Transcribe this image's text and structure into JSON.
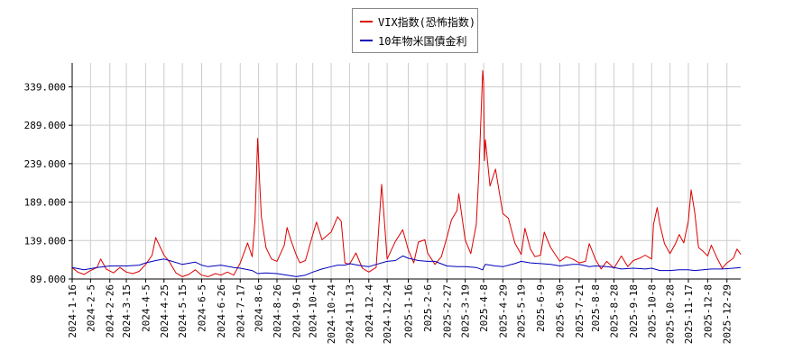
{
  "chart_data": {
    "type": "line",
    "title": "",
    "xlabel": "",
    "ylabel": "",
    "ylim": [
      89.0,
      370.0
    ],
    "y_ticks": [
      "89.000",
      "139.000",
      "189.000",
      "239.000",
      "289.000",
      "339.000"
    ],
    "y_tick_values": [
      89,
      139,
      189,
      239,
      289,
      339
    ],
    "x_ticks": [
      "2024-1-16",
      "2024-2-5",
      "2024-2-26",
      "2024-3-15",
      "2024-4-5",
      "2024-4-25",
      "2024-5-15",
      "2024-6-5",
      "2024-6-26",
      "2024-7-17",
      "2024-8-6",
      "2024-8-26",
      "2024-9-16",
      "2024-10-4",
      "2024-10-24",
      "2024-11-13",
      "2024-12-4",
      "2024-12-24",
      "2025-1-16",
      "2025-2-6",
      "2025-2-27",
      "2025-3-19",
      "2025-4-8",
      "2025-4-29",
      "2025-5-19",
      "2025-6-9",
      "2025-6-30",
      "2025-7-21",
      "2025-8-8",
      "2025-8-28",
      "2025-9-18",
      "2025-10-8",
      "2025-10-28",
      "2025-11-17",
      "2025-12-8",
      "2025-12-29"
    ],
    "x_range": [
      "2024-01-16",
      "2026-01-13"
    ],
    "grid": true,
    "legend_placement": "top-center",
    "series": [
      {
        "name": "VIX指数(恐怖指数)",
        "color": "#dd0000",
        "points": [
          [
            "2024-01-16",
            104
          ],
          [
            "2024-01-22",
            98
          ],
          [
            "2024-01-29",
            95
          ],
          [
            "2024-02-05",
            100
          ],
          [
            "2024-02-12",
            104
          ],
          [
            "2024-02-16",
            115
          ],
          [
            "2024-02-22",
            102
          ],
          [
            "2024-03-01",
            97
          ],
          [
            "2024-03-08",
            104
          ],
          [
            "2024-03-15",
            98
          ],
          [
            "2024-03-22",
            96
          ],
          [
            "2024-03-29",
            99
          ],
          [
            "2024-04-05",
            108
          ],
          [
            "2024-04-12",
            120
          ],
          [
            "2024-04-16",
            143
          ],
          [
            "2024-04-19",
            135
          ],
          [
            "2024-04-25",
            120
          ],
          [
            "2024-05-01",
            111
          ],
          [
            "2024-05-08",
            97
          ],
          [
            "2024-05-15",
            92
          ],
          [
            "2024-05-22",
            95
          ],
          [
            "2024-05-29",
            101
          ],
          [
            "2024-06-05",
            94
          ],
          [
            "2024-06-12",
            92
          ],
          [
            "2024-06-20",
            96
          ],
          [
            "2024-06-26",
            94
          ],
          [
            "2024-07-03",
            98
          ],
          [
            "2024-07-10",
            94
          ],
          [
            "2024-07-17",
            110
          ],
          [
            "2024-07-22",
            126
          ],
          [
            "2024-07-25",
            136
          ],
          [
            "2024-07-30",
            118
          ],
          [
            "2024-08-02",
            165
          ],
          [
            "2024-08-05",
            272
          ],
          [
            "2024-08-07",
            220
          ],
          [
            "2024-08-09",
            170
          ],
          [
            "2024-08-14",
            130
          ],
          [
            "2024-08-20",
            115
          ],
          [
            "2024-08-26",
            112
          ],
          [
            "2024-09-03",
            133
          ],
          [
            "2024-09-06",
            156
          ],
          [
            "2024-09-10",
            140
          ],
          [
            "2024-09-16",
            120
          ],
          [
            "2024-09-20",
            110
          ],
          [
            "2024-09-26",
            113
          ],
          [
            "2024-10-04",
            147
          ],
          [
            "2024-10-08",
            163
          ],
          [
            "2024-10-14",
            140
          ],
          [
            "2024-10-24",
            150
          ],
          [
            "2024-10-31",
            170
          ],
          [
            "2024-11-04",
            164
          ],
          [
            "2024-11-08",
            110
          ],
          [
            "2024-11-13",
            108
          ],
          [
            "2024-11-20",
            123
          ],
          [
            "2024-11-27",
            103
          ],
          [
            "2024-12-04",
            98
          ],
          [
            "2024-12-12",
            104
          ],
          [
            "2024-12-18",
            212
          ],
          [
            "2024-12-20",
            180
          ],
          [
            "2024-12-24",
            115
          ],
          [
            "2025-01-02",
            138
          ],
          [
            "2025-01-10",
            153
          ],
          [
            "2025-01-16",
            127
          ],
          [
            "2025-01-22",
            110
          ],
          [
            "2025-01-27",
            137
          ],
          [
            "2025-02-03",
            140
          ],
          [
            "2025-02-06",
            123
          ],
          [
            "2025-02-14",
            108
          ],
          [
            "2025-02-21",
            118
          ],
          [
            "2025-02-27",
            143
          ],
          [
            "2025-03-04",
            166
          ],
          [
            "2025-03-10",
            178
          ],
          [
            "2025-03-12",
            200
          ],
          [
            "2025-03-19",
            140
          ],
          [
            "2025-03-25",
            122
          ],
          [
            "2025-03-31",
            160
          ],
          [
            "2025-04-03",
            230
          ],
          [
            "2025-04-07",
            360
          ],
          [
            "2025-04-08",
            345
          ],
          [
            "2025-04-09",
            243
          ],
          [
            "2025-04-10",
            270
          ],
          [
            "2025-04-15",
            210
          ],
          [
            "2025-04-21",
            232
          ],
          [
            "2025-04-29",
            174
          ],
          [
            "2025-05-05",
            168
          ],
          [
            "2025-05-12",
            136
          ],
          [
            "2025-05-19",
            121
          ],
          [
            "2025-05-23",
            155
          ],
          [
            "2025-05-29",
            128
          ],
          [
            "2025-06-03",
            118
          ],
          [
            "2025-06-09",
            120
          ],
          [
            "2025-06-13",
            150
          ],
          [
            "2025-06-20",
            130
          ],
          [
            "2025-06-30",
            112
          ],
          [
            "2025-07-07",
            118
          ],
          [
            "2025-07-14",
            115
          ],
          [
            "2025-07-21",
            110
          ],
          [
            "2025-07-28",
            112
          ],
          [
            "2025-08-01",
            135
          ],
          [
            "2025-08-08",
            114
          ],
          [
            "2025-08-14",
            102
          ],
          [
            "2025-08-20",
            112
          ],
          [
            "2025-08-28",
            103
          ],
          [
            "2025-09-05",
            119
          ],
          [
            "2025-09-12",
            105
          ],
          [
            "2025-09-18",
            113
          ],
          [
            "2025-09-25",
            116
          ],
          [
            "2025-10-01",
            120
          ],
          [
            "2025-10-08",
            115
          ],
          [
            "2025-10-10",
            160
          ],
          [
            "2025-10-14",
            182
          ],
          [
            "2025-10-17",
            160
          ],
          [
            "2025-10-22",
            135
          ],
          [
            "2025-10-28",
            122
          ],
          [
            "2025-11-03",
            135
          ],
          [
            "2025-11-07",
            147
          ],
          [
            "2025-11-12",
            136
          ],
          [
            "2025-11-17",
            165
          ],
          [
            "2025-11-20",
            205
          ],
          [
            "2025-11-24",
            175
          ],
          [
            "2025-11-28",
            130
          ],
          [
            "2025-12-03",
            125
          ],
          [
            "2025-12-08",
            119
          ],
          [
            "2025-12-12",
            133
          ],
          [
            "2025-12-18",
            117
          ],
          [
            "2025-12-24",
            103
          ],
          [
            "2025-12-29",
            110
          ],
          [
            "2026-01-05",
            116
          ],
          [
            "2026-01-09",
            128
          ],
          [
            "2026-01-13",
            121
          ]
        ]
      },
      {
        "name": "10年物米国債金利",
        "color": "#0000bb",
        "points": [
          [
            "2024-01-16",
            104
          ],
          [
            "2024-01-29",
            101
          ],
          [
            "2024-02-12",
            104
          ],
          [
            "2024-02-26",
            106
          ],
          [
            "2024-03-15",
            106
          ],
          [
            "2024-03-29",
            107
          ],
          [
            "2024-04-05",
            110
          ],
          [
            "2024-04-16",
            113
          ],
          [
            "2024-04-25",
            115
          ],
          [
            "2024-05-01",
            113
          ],
          [
            "2024-05-15",
            108
          ],
          [
            "2024-05-29",
            111
          ],
          [
            "2024-06-05",
            107
          ],
          [
            "2024-06-12",
            105
          ],
          [
            "2024-06-26",
            107
          ],
          [
            "2024-07-10",
            104
          ],
          [
            "2024-07-17",
            103
          ],
          [
            "2024-07-30",
            100
          ],
          [
            "2024-08-05",
            96
          ],
          [
            "2024-08-14",
            97
          ],
          [
            "2024-08-26",
            96
          ],
          [
            "2024-09-06",
            94
          ],
          [
            "2024-09-16",
            92
          ],
          [
            "2024-09-26",
            94
          ],
          [
            "2024-10-04",
            98
          ],
          [
            "2024-10-14",
            102
          ],
          [
            "2024-10-24",
            105
          ],
          [
            "2024-10-31",
            107
          ],
          [
            "2024-11-08",
            107
          ],
          [
            "2024-11-13",
            109
          ],
          [
            "2024-11-27",
            106
          ],
          [
            "2024-12-04",
            105
          ],
          [
            "2024-12-12",
            108
          ],
          [
            "2024-12-24",
            112
          ],
          [
            "2025-01-02",
            113
          ],
          [
            "2025-01-10",
            119
          ],
          [
            "2025-01-16",
            116
          ],
          [
            "2025-01-27",
            113
          ],
          [
            "2025-02-06",
            112
          ],
          [
            "2025-02-14",
            112
          ],
          [
            "2025-02-27",
            106
          ],
          [
            "2025-03-10",
            105
          ],
          [
            "2025-03-19",
            105
          ],
          [
            "2025-03-31",
            104
          ],
          [
            "2025-04-07",
            101
          ],
          [
            "2025-04-08",
            104
          ],
          [
            "2025-04-10",
            108
          ],
          [
            "2025-04-21",
            106
          ],
          [
            "2025-04-29",
            105
          ],
          [
            "2025-05-12",
            109
          ],
          [
            "2025-05-19",
            112
          ],
          [
            "2025-05-29",
            110
          ],
          [
            "2025-06-09",
            109
          ],
          [
            "2025-06-20",
            108
          ],
          [
            "2025-06-30",
            106
          ],
          [
            "2025-07-14",
            108
          ],
          [
            "2025-07-21",
            108
          ],
          [
            "2025-08-01",
            105
          ],
          [
            "2025-08-08",
            106
          ],
          [
            "2025-08-20",
            105
          ],
          [
            "2025-08-28",
            104
          ],
          [
            "2025-09-05",
            102
          ],
          [
            "2025-09-18",
            103
          ],
          [
            "2025-10-01",
            102
          ],
          [
            "2025-10-08",
            103
          ],
          [
            "2025-10-17",
            100
          ],
          [
            "2025-10-28",
            100
          ],
          [
            "2025-11-07",
            101
          ],
          [
            "2025-11-17",
            101
          ],
          [
            "2025-11-24",
            100
          ],
          [
            "2025-12-03",
            101
          ],
          [
            "2025-12-12",
            102
          ],
          [
            "2025-12-24",
            102
          ],
          [
            "2026-01-05",
            103
          ],
          [
            "2026-01-13",
            104
          ]
        ]
      }
    ]
  }
}
